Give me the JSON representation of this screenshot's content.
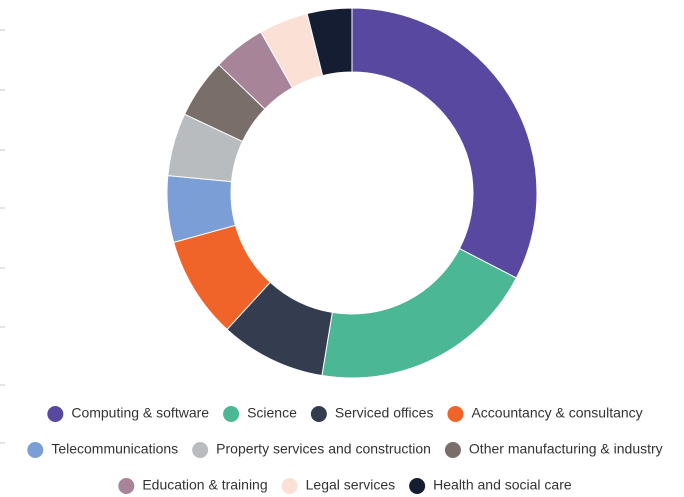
{
  "chart_data": {
    "type": "donut",
    "categories": [
      "Computing & software",
      "Science",
      "Serviced offices",
      "Accountancy & consultancy",
      "Telecommunications",
      "Property services and construction",
      "Other manufacturing & industry",
      "Education & training",
      "Legal services",
      "Health and social care"
    ],
    "values": [
      32.6,
      20,
      9.2,
      8.9,
      5.8,
      5.5,
      5.2,
      4.6,
      4.3,
      3.9
    ],
    "colors": [
      "#5848a0",
      "#4cb794",
      "#343c50",
      "#f0642a",
      "#7b9ed6",
      "#b8bcbe",
      "#7a6e6a",
      "#a88498",
      "#fbe0d6",
      "#151d33"
    ],
    "legend": "bottom"
  }
}
